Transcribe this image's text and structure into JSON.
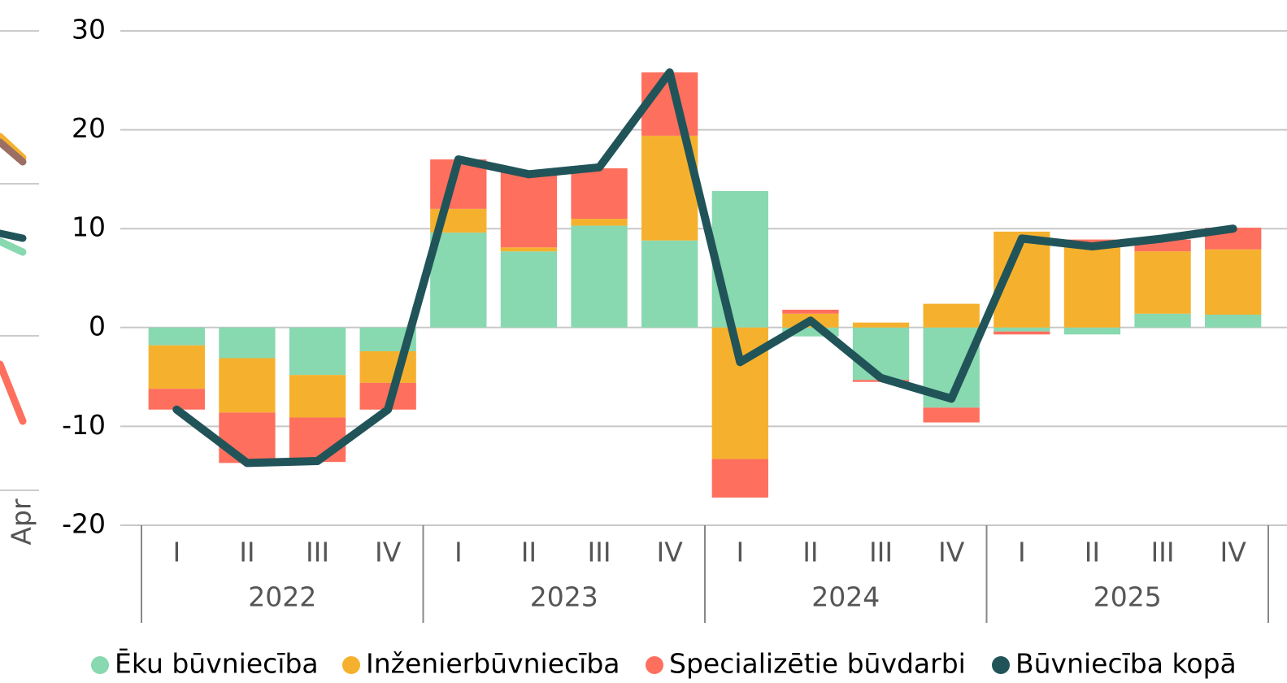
{
  "left_fragment": {
    "label": "Apr"
  },
  "chart_data": {
    "type": "bar",
    "stacked": true,
    "categories": [
      "I",
      "II",
      "III",
      "IV",
      "I",
      "II",
      "III",
      "IV",
      "I",
      "II",
      "III",
      "IV",
      "I",
      "II",
      "III",
      "IV"
    ],
    "category_groups": [
      "2022",
      "2023",
      "2024",
      "2025"
    ],
    "series": [
      {
        "name": "Ēku būvniecība",
        "color": "#88d8b0",
        "type": "bar",
        "values": [
          -1.8,
          -3.1,
          -4.8,
          -2.4,
          9.6,
          7.7,
          10.3,
          8.8,
          13.8,
          -0.9,
          -5.3,
          -8.1,
          -0.4,
          -0.7,
          1.4,
          1.3
        ]
      },
      {
        "name": "Inženierbūvniecība",
        "color": "#f5b12e",
        "type": "bar",
        "values": [
          -4.4,
          -5.5,
          -4.3,
          -3.2,
          2.4,
          0.4,
          0.7,
          10.6,
          -13.3,
          1.4,
          0.5,
          2.4,
          9.7,
          8.2,
          6.3,
          6.6
        ]
      },
      {
        "name": "Specializētie būvdarbi",
        "color": "#fe6f5e",
        "type": "bar",
        "values": [
          -2.1,
          -5.1,
          -4.5,
          -2.7,
          5.0,
          7.6,
          5.1,
          6.4,
          -3.9,
          0.4,
          -0.2,
          -1.5,
          -0.3,
          0.7,
          1.2,
          2.2
        ]
      },
      {
        "name": "Būvniecība kopā",
        "color": "#215459",
        "type": "line",
        "values": [
          -8.3,
          -13.7,
          -13.5,
          -8.3,
          17.0,
          15.5,
          16.2,
          25.8,
          -3.5,
          0.7,
          -5.1,
          -7.2,
          9.0,
          8.2,
          9.0,
          10.0
        ]
      }
    ],
    "ylim": [
      -20,
      30
    ],
    "yticks": [
      -20,
      -10,
      0,
      10,
      20,
      30
    ],
    "grid": true,
    "legend": "bottom"
  }
}
